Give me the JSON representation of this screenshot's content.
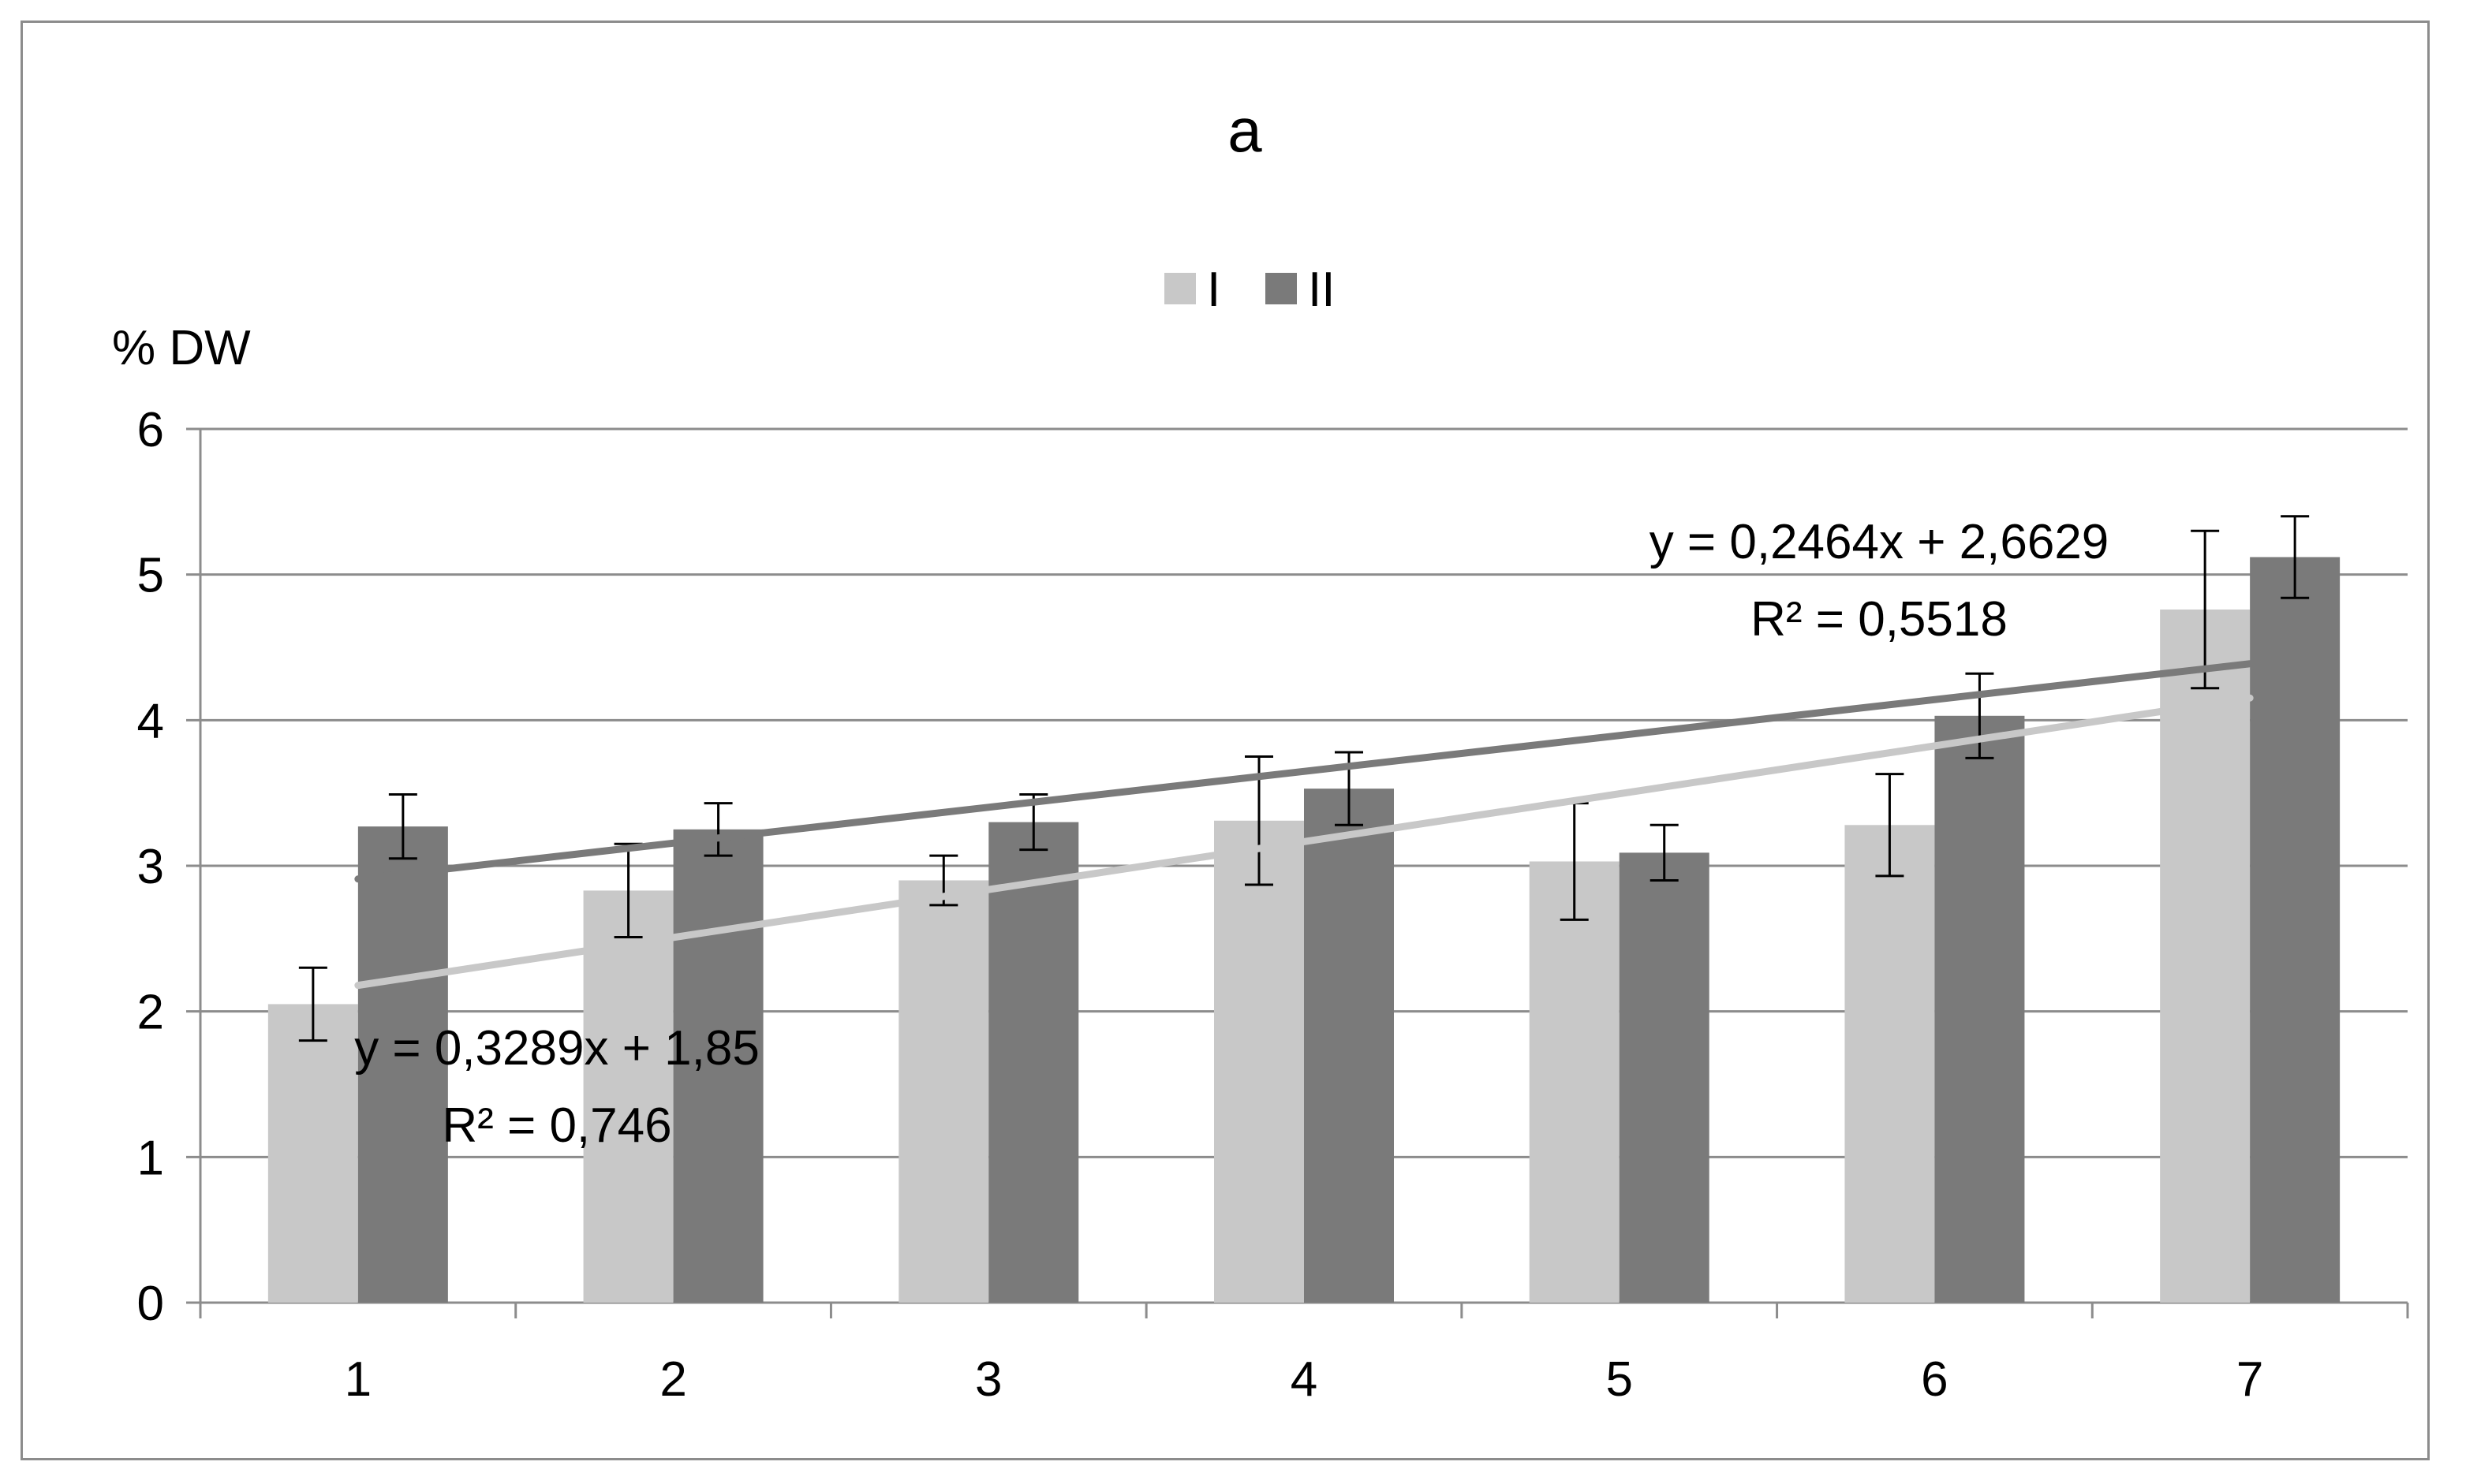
{
  "chart_data": {
    "type": "bar",
    "title": "a",
    "ylabel": "% DW",
    "xlabel": "",
    "categories": [
      "1",
      "2",
      "3",
      "4",
      "5",
      "6",
      "7"
    ],
    "ylim": [
      0,
      6
    ],
    "yticks": [
      "0",
      "1",
      "2",
      "3",
      "4",
      "5",
      "6"
    ],
    "grid": true,
    "legend_position": "top-center",
    "series": [
      {
        "name": "I",
        "color": "#c8c8c8",
        "values": [
          2.05,
          2.83,
          2.9,
          3.31,
          3.03,
          3.28,
          4.76
        ],
        "errors": [
          0.25,
          0.32,
          0.17,
          0.44,
          0.4,
          0.35,
          0.54
        ]
      },
      {
        "name": "II",
        "color": "#7a7a7a",
        "values": [
          3.27,
          3.25,
          3.3,
          3.53,
          3.09,
          4.03,
          5.12
        ],
        "errors": [
          0.22,
          0.18,
          0.19,
          0.25,
          0.19,
          0.29,
          0.28
        ]
      }
    ],
    "trendlines": [
      {
        "series": "I",
        "color": "#c8c8c8",
        "slope": 0.3289,
        "intercept": 1.85,
        "equation": "y = 0,3289x + 1,85",
        "r2": "R² = 0,746"
      },
      {
        "series": "II",
        "color": "#7a7a7a",
        "slope": 0.2464,
        "intercept": 2.6629,
        "equation": "y = 0,2464x + 2,6629",
        "r2": "R² = 0,5518"
      }
    ]
  }
}
